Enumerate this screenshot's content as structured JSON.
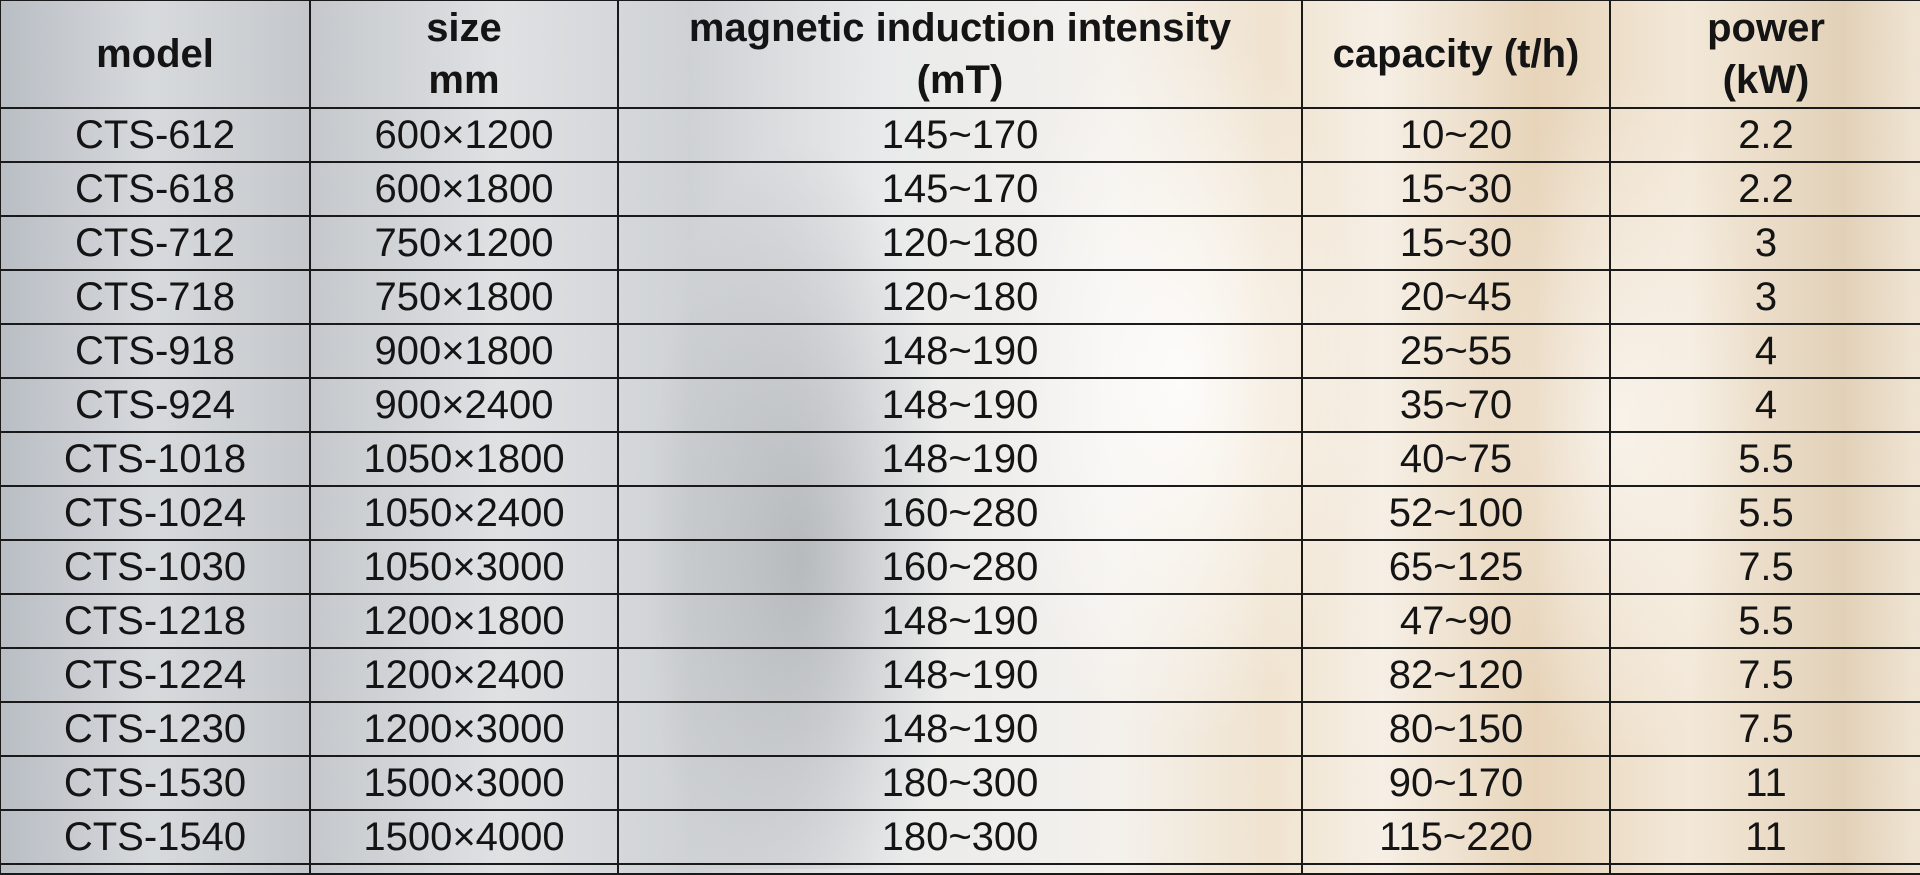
{
  "table": {
    "headers": [
      [
        "model"
      ],
      [
        "size",
        "mm"
      ],
      [
        "magnetic induction intensity",
        "(mT)"
      ],
      [
        "capacity (t/h)"
      ],
      [
        "power",
        "(kW)"
      ]
    ],
    "rows": [
      [
        "CTS-612",
        "600×1200",
        "145~170",
        "10~20",
        "2.2"
      ],
      [
        "CTS-618",
        "600×1800",
        "145~170",
        "15~30",
        "2.2"
      ],
      [
        "CTS-712",
        "750×1200",
        "120~180",
        "15~30",
        "3"
      ],
      [
        "CTS-718",
        "750×1800",
        "120~180",
        "20~45",
        "3"
      ],
      [
        "CTS-918",
        "900×1800",
        "148~190",
        "25~55",
        "4"
      ],
      [
        "CTS-924",
        "900×2400",
        "148~190",
        "35~70",
        "4"
      ],
      [
        "CTS-1018",
        "1050×1800",
        "148~190",
        "40~75",
        "5.5"
      ],
      [
        "CTS-1024",
        "1050×2400",
        "160~280",
        "52~100",
        "5.5"
      ],
      [
        "CTS-1030",
        "1050×3000",
        "160~280",
        "65~125",
        "7.5"
      ],
      [
        "CTS-1218",
        "1200×1800",
        "148~190",
        "47~90",
        "5.5"
      ],
      [
        "CTS-1224",
        "1200×2400",
        "148~190",
        "82~120",
        "7.5"
      ],
      [
        "CTS-1230",
        "1200×3000",
        "148~190",
        "80~150",
        "7.5"
      ],
      [
        "CTS-1530",
        "1500×3000",
        "180~300",
        "90~170",
        "11"
      ],
      [
        "CTS-1540",
        "1500×4000",
        "180~300",
        "115~220",
        "11"
      ]
    ]
  }
}
